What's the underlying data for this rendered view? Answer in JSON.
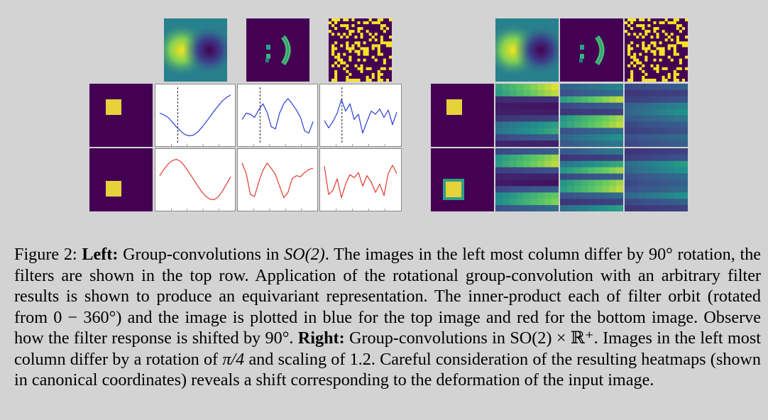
{
  "caption": {
    "label": "Figure 2:",
    "left_heading": "Left:",
    "seg1": " Group-convolutions in ",
    "math_so2": "SO(2)",
    "seg2": ". The images in the left most column differ by 90° rotation, the filters are shown in the top row. Application of the rotational group-convolution with an arbitrary filter results is shown to produce an equivariant representation. The inner-product each of filter orbit (rotated from 0 − 360°) and the image is plotted in blue for the top image and red for the bottom image. Observe how the filter response is shifted by 90°. ",
    "right_heading": "Right:",
    "seg3": " Group-convolutions in SO(2) × ℝ⁺. Images in the left most column differ by a rotation of ",
    "math_pi4": "π/4",
    "seg4": " and scaling of 1.2. Careful consideration of the resulting heatmaps (shown in canonical coordinates) reveals a shift corresponding to the deformation of the input image."
  },
  "colors": {
    "background": "#d3d3d3",
    "viridis_dark": "#440154",
    "viridis_yellow": "#fde725",
    "top_curve": "#2b3dd6",
    "bottom_curve": "#e03a2e"
  },
  "filters": {
    "smiley_text": "; )"
  },
  "response_curves": {
    "top_row": [
      [
        0.1,
        0.02,
        -0.1,
        -0.32,
        -0.55,
        -0.75,
        -0.92,
        -0.98,
        -0.95,
        -0.82,
        -0.6,
        -0.35,
        -0.08,
        0.2,
        0.45,
        0.68,
        0.85,
        0.97
      ],
      [
        -0.2,
        0.1,
        0.05,
        -0.1,
        0.25,
        0.55,
        0.15,
        -0.55,
        -0.65,
        0.1,
        0.55,
        0.8,
        0.55,
        0.25,
        -0.1,
        -0.75,
        -0.85,
        -0.3
      ],
      [
        -0.25,
        -0.6,
        -0.3,
        0.1,
        0.75,
        0.2,
        0.55,
        -0.2,
        0.05,
        -0.85,
        -0.3,
        0.2,
        0.05,
        0.3,
        -0.1,
        0.25,
        -0.45,
        0.15
      ]
    ],
    "bottom_row": [
      [
        0.2,
        0.5,
        0.75,
        0.92,
        0.98,
        0.88,
        0.65,
        0.35,
        0.05,
        -0.25,
        -0.55,
        -0.78,
        -0.92,
        -0.95,
        -0.82,
        -0.55,
        -0.2,
        0.15
      ],
      [
        0.8,
        0.3,
        -0.7,
        -0.8,
        -0.1,
        0.45,
        0.8,
        0.55,
        0.25,
        -0.3,
        -0.85,
        -0.6,
        0.05,
        0.2,
        0.15,
        0.35,
        0.5,
        0.55
      ],
      [
        0.65,
        -0.7,
        -0.5,
        0.05,
        -0.85,
        -0.2,
        0.25,
        0.1,
        0.35,
        -0.3,
        0.2,
        -0.1,
        -0.6,
        -0.2,
        -0.75,
        0.3,
        0.7,
        0.3
      ]
    ]
  },
  "heatmap_bands": {
    "col1_top": [
      0.95,
      0.9,
      0.15,
      0.05,
      0.08,
      0.2,
      0.55,
      0.6,
      0.3,
      0.1
    ],
    "col2_top": [
      0.45,
      0.35,
      0.9,
      0.3,
      0.2,
      0.85,
      0.9,
      0.35,
      0.5,
      0.4
    ],
    "col3_top": [
      0.3,
      0.2,
      0.25,
      0.45,
      0.5,
      0.4,
      0.3,
      0.25,
      0.35,
      0.3
    ],
    "col1_bottom": [
      0.3,
      0.85,
      0.9,
      0.25,
      0.1,
      0.05,
      0.3,
      0.75,
      0.8,
      0.35
    ],
    "col2_bottom": [
      0.4,
      0.2,
      0.6,
      0.85,
      0.3,
      0.85,
      0.9,
      0.35,
      0.2,
      0.55
    ],
    "col3_bottom": [
      0.2,
      0.25,
      0.55,
      0.5,
      0.35,
      0.3,
      0.35,
      0.5,
      0.3,
      0.2
    ]
  }
}
